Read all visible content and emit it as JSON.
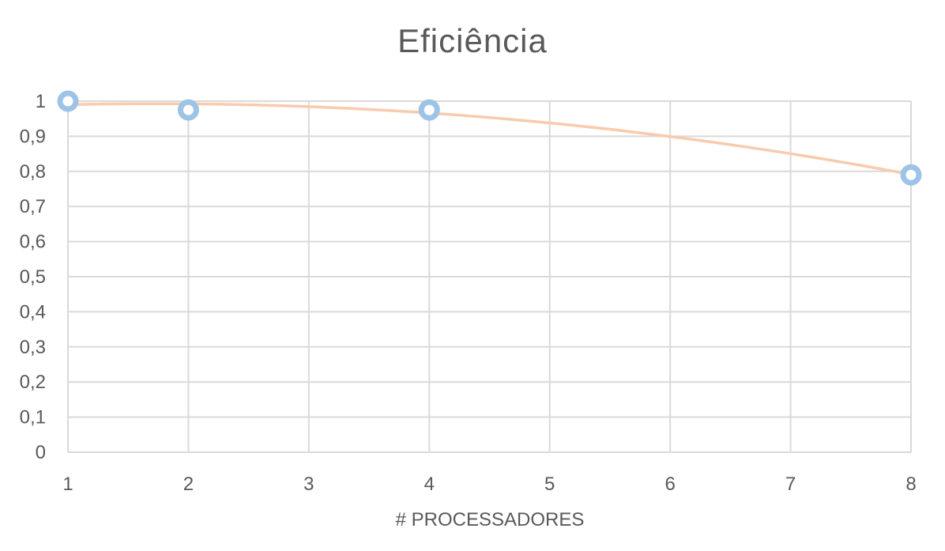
{
  "chart_data": {
    "type": "scatter",
    "title": "Eficiência",
    "xlabel": "# PROCESSADORES",
    "ylabel": "",
    "x_categories": [
      "1",
      "2",
      "3",
      "4",
      "5",
      "6",
      "7",
      "8"
    ],
    "y_ticks": [
      "0",
      "0,1",
      "0,2",
      "0,3",
      "0,4",
      "0,5",
      "0,6",
      "0,7",
      "0,8",
      "0,9",
      "1"
    ],
    "ylim": [
      0,
      1
    ],
    "grid": true,
    "series": [
      {
        "x": [
          1,
          2,
          4,
          8
        ],
        "y": [
          1.0,
          0.975,
          0.975,
          0.79
        ],
        "color": "#9DC3E6",
        "trendline": true,
        "trendline_color": "#F8CBAD"
      }
    ]
  }
}
